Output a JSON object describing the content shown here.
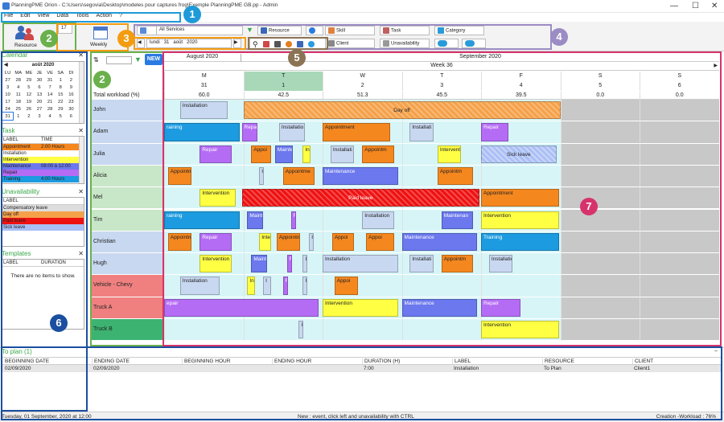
{
  "window": {
    "title": "PlanningPME Orion - C:\\Users\\segovia\\Desktop\\modeles pour captures frog\\Exemple PlanningPME GB.pp - Admin"
  },
  "menu": [
    "File",
    "Edit",
    "View",
    "Data",
    "Tools",
    "Action",
    "?"
  ],
  "ribbon": {
    "resource_label": "Resource",
    "week_num": "17",
    "weekly_label": "Weekly",
    "date": {
      "day": "lundi",
      "num": "31",
      "month": "août",
      "year": "2020"
    },
    "filters": {
      "services": "All Services",
      "resource": "Resource",
      "skill": "Skill",
      "task": "Task",
      "category": "Category",
      "client": "Client",
      "unavailability": "Unavailability"
    }
  },
  "badges": [
    "1",
    "2",
    "2",
    "3",
    "4",
    "5",
    "6",
    "7"
  ],
  "calendar": {
    "title": "Calendar",
    "month": "août 2020",
    "weekdays": [
      "LU",
      "MA",
      "ME",
      "JE",
      "VE",
      "SA",
      "DI"
    ],
    "weeks": [
      [
        "27",
        "28",
        "29",
        "30",
        "31",
        "1",
        "2"
      ],
      [
        "3",
        "4",
        "5",
        "6",
        "7",
        "8",
        "9"
      ],
      [
        "10",
        "11",
        "12",
        "13",
        "14",
        "15",
        "16"
      ],
      [
        "17",
        "18",
        "19",
        "20",
        "21",
        "22",
        "23"
      ],
      [
        "24",
        "25",
        "26",
        "27",
        "28",
        "29",
        "30"
      ],
      [
        "31",
        "1",
        "2",
        "3",
        "4",
        "5",
        "6"
      ]
    ]
  },
  "task_panel": {
    "title": "Task",
    "headers": [
      "LABEL",
      "TIME"
    ],
    "rows": [
      {
        "label": "Appointment",
        "time": "2:00 Hours",
        "color": "#f5871f"
      },
      {
        "label": "Installation",
        "time": "",
        "color": "#ffffff"
      },
      {
        "label": "Intervention",
        "time": "",
        "color": "#ffff44"
      },
      {
        "label": "Maintenance",
        "time": "08:00 à 12:00",
        "color": "#6b78ee"
      },
      {
        "label": "Repair",
        "time": "",
        "color": "#b56cf5"
      },
      {
        "label": "Training",
        "time": "4:00 Hours",
        "color": "#1c9be0"
      }
    ]
  },
  "unavail_panel": {
    "title": "Unavailability",
    "header": "LABEL",
    "rows": [
      {
        "label": "Compensatory leave",
        "color": "#dddddd"
      },
      {
        "label": "Day off",
        "color": "#f5a14a"
      },
      {
        "label": "Paid leave",
        "color": "#ee1111"
      },
      {
        "label": "Sick leave",
        "color": "#aabff5"
      }
    ]
  },
  "templates_panel": {
    "title": "Templates",
    "headers": [
      "LABEL",
      "DURATION"
    ],
    "empty": "There are no items to show."
  },
  "resource_list": {
    "new_label": "NEW",
    "total_label": "Total workload (%)",
    "items": [
      {
        "name": "John",
        "color": "#c8d8f0"
      },
      {
        "name": "Adam",
        "color": "#c8d8f0"
      },
      {
        "name": "Julia",
        "color": "#c8d8f0"
      },
      {
        "name": "Alicia",
        "color": "#c8e6c8"
      },
      {
        "name": "Mel",
        "color": "#c8e6c8"
      },
      {
        "name": "Tim",
        "color": "#c8e6c8"
      },
      {
        "name": "Christian",
        "color": "#c8d8f0"
      },
      {
        "name": "Hugh",
        "color": "#c8d8f0"
      },
      {
        "name": "Vehicle - Chevy",
        "color": "#f08080"
      },
      {
        "name": "Truck A",
        "color": "#f08080"
      },
      {
        "name": "Truck B",
        "color": "#3cb371"
      }
    ]
  },
  "schedule": {
    "months": [
      {
        "label": "August 2020"
      },
      {
        "label": "September 2020"
      }
    ],
    "week_label": "Week 36",
    "days": [
      {
        "letter": "M",
        "num": "31",
        "workload": "60.0"
      },
      {
        "letter": "T",
        "num": "1",
        "workload": "42.5"
      },
      {
        "letter": "W",
        "num": "2",
        "workload": "51.3"
      },
      {
        "letter": "T",
        "num": "3",
        "workload": "45.5"
      },
      {
        "letter": "F",
        "num": "4",
        "workload": "39.5"
      },
      {
        "letter": "S",
        "num": "5",
        "workload": "0.0"
      },
      {
        "letter": "S",
        "num": "6",
        "workload": "0.0"
      }
    ],
    "events": [
      {
        "row": 0,
        "s": 0.2,
        "e": 0.8,
        "label": "Installation",
        "color": "#c8d8f0"
      },
      {
        "row": 0,
        "s": 1.0,
        "e": 5.0,
        "label": "Day off",
        "color": "#f5a14a",
        "center": true
      },
      {
        "row": 1,
        "s": 0.0,
        "e": 0.95,
        "label": "raining",
        "color": "#1c9be0"
      },
      {
        "row": 1,
        "s": 0.98,
        "e": 1.18,
        "label": "Repa",
        "color": "#b56cf5"
      },
      {
        "row": 1,
        "s": 1.45,
        "e": 1.78,
        "label": "Installatio",
        "color": "#c8d8f0"
      },
      {
        "row": 1,
        "s": 2.0,
        "e": 2.85,
        "label": "Appointment",
        "color": "#f5871f"
      },
      {
        "row": 1,
        "s": 3.1,
        "e": 3.4,
        "label": "Installati",
        "color": "#c8d8f0"
      },
      {
        "row": 1,
        "s": 4.0,
        "e": 4.35,
        "label": "Repair",
        "color": "#b56cf5"
      },
      {
        "row": 2,
        "s": 0.45,
        "e": 0.85,
        "label": "Repair",
        "color": "#b56cf5"
      },
      {
        "row": 2,
        "s": 1.1,
        "e": 1.35,
        "label": "Appoi",
        "color": "#f5871f"
      },
      {
        "row": 2,
        "s": 1.4,
        "e": 1.62,
        "label": "Mainte",
        "color": "#6b78ee"
      },
      {
        "row": 2,
        "s": 1.75,
        "e": 1.85,
        "label": "Int",
        "color": "#ffff44"
      },
      {
        "row": 2,
        "s": 2.1,
        "e": 2.4,
        "label": "Installati",
        "color": "#c8d8f0"
      },
      {
        "row": 2,
        "s": 2.5,
        "e": 2.9,
        "label": "Appointm",
        "color": "#f5871f"
      },
      {
        "row": 2,
        "s": 3.45,
        "e": 3.75,
        "label": "Interventi",
        "color": "#ffff44"
      },
      {
        "row": 2,
        "s": 4.0,
        "e": 4.95,
        "label": "Sick leave",
        "color": "#aabff5",
        "center": true
      },
      {
        "row": 3,
        "s": 0.05,
        "e": 0.35,
        "label": "Appointm",
        "color": "#f5871f"
      },
      {
        "row": 3,
        "s": 1.2,
        "e": 1.25,
        "label": "I",
        "color": "#c8d8f0"
      },
      {
        "row": 3,
        "s": 1.5,
        "e": 1.9,
        "label": "Appointme",
        "color": "#f5871f"
      },
      {
        "row": 3,
        "s": 2.0,
        "e": 2.95,
        "label": "Maintenance",
        "color": "#6b78ee"
      },
      {
        "row": 3,
        "s": 3.45,
        "e": 3.9,
        "label": "Appointm",
        "color": "#f5871f"
      },
      {
        "row": 4,
        "s": 0.45,
        "e": 0.9,
        "label": "Intervention",
        "color": "#ffff44"
      },
      {
        "row": 4,
        "s": 0.98,
        "e": 3.98,
        "label": "Paid leave",
        "color": "#ee1111",
        "center": true,
        "light": true
      },
      {
        "row": 4,
        "s": 4.0,
        "e": 4.98,
        "label": "Appointment",
        "color": "#f5871f"
      },
      {
        "row": 5,
        "s": 0.0,
        "e": 0.95,
        "label": "raining",
        "color": "#1c9be0"
      },
      {
        "row": 5,
        "s": 1.05,
        "e": 1.25,
        "label": "Mainte",
        "color": "#6b78ee"
      },
      {
        "row": 5,
        "s": 1.6,
        "e": 1.65,
        "label": "R",
        "color": "#b56cf5"
      },
      {
        "row": 5,
        "s": 2.5,
        "e": 2.9,
        "label": "Installation",
        "color": "#c8d8f0"
      },
      {
        "row": 5,
        "s": 3.5,
        "e": 3.9,
        "label": "Maintenan",
        "color": "#6b78ee"
      },
      {
        "row": 5,
        "s": 4.0,
        "e": 4.98,
        "label": "Intervention",
        "color": "#ffff44"
      },
      {
        "row": 6,
        "s": 0.05,
        "e": 0.35,
        "label": "Appointm Client1",
        "color": "#f5871f"
      },
      {
        "row": 6,
        "s": 0.45,
        "e": 0.85,
        "label": "Repair",
        "color": "#b56cf5"
      },
      {
        "row": 6,
        "s": 1.2,
        "e": 1.35,
        "label": "Interv",
        "color": "#ffff44"
      },
      {
        "row": 6,
        "s": 1.42,
        "e": 1.72,
        "label": "Appointm",
        "color": "#f5871f"
      },
      {
        "row": 6,
        "s": 1.83,
        "e": 1.86,
        "label": "I",
        "color": "#c8d8f0"
      },
      {
        "row": 6,
        "s": 2.12,
        "e": 2.4,
        "label": "Appoi",
        "color": "#f5871f"
      },
      {
        "row": 6,
        "s": 2.55,
        "e": 2.9,
        "label": "Appoi",
        "color": "#f5871f"
      },
      {
        "row": 6,
        "s": 3.0,
        "e": 3.95,
        "label": "Maintenance",
        "color": "#6b78ee"
      },
      {
        "row": 6,
        "s": 4.0,
        "e": 4.98,
        "label": "Training",
        "color": "#1c9be0"
      },
      {
        "row": 7,
        "s": 0.45,
        "e": 0.85,
        "label": "Intervention",
        "color": "#ffff44"
      },
      {
        "row": 7,
        "s": 1.1,
        "e": 1.3,
        "label": "Mainte",
        "color": "#6b78ee"
      },
      {
        "row": 7,
        "s": 1.55,
        "e": 1.6,
        "label": "R",
        "color": "#b56cf5"
      },
      {
        "row": 7,
        "s": 1.75,
        "e": 1.8,
        "label": "I",
        "color": "#c8d8f0"
      },
      {
        "row": 7,
        "s": 2.0,
        "e": 2.95,
        "label": "Installation",
        "color": "#c8d8f0"
      },
      {
        "row": 7,
        "s": 3.1,
        "e": 3.4,
        "label": "Installati",
        "color": "#c8d8f0"
      },
      {
        "row": 7,
        "s": 3.5,
        "e": 3.9,
        "label": "Appointm",
        "color": "#f5871f"
      },
      {
        "row": 7,
        "s": 4.1,
        "e": 4.4,
        "label": "Installatio",
        "color": "#c8d8f0"
      },
      {
        "row": 8,
        "s": 0.2,
        "e": 0.7,
        "label": "Installation",
        "color": "#c8d8f0"
      },
      {
        "row": 8,
        "s": 1.05,
        "e": 1.15,
        "label": "Int",
        "color": "#ffff44"
      },
      {
        "row": 8,
        "s": 1.25,
        "e": 1.35,
        "label": "I",
        "color": "#c8d8f0"
      },
      {
        "row": 8,
        "s": 1.5,
        "e": 1.55,
        "label": "R",
        "color": "#b56cf5"
      },
      {
        "row": 8,
        "s": 1.75,
        "e": 1.8,
        "label": "I",
        "color": "#c8d8f0"
      },
      {
        "row": 8,
        "s": 2.15,
        "e": 2.45,
        "label": "Appoi",
        "color": "#f5871f"
      },
      {
        "row": 9,
        "s": 0.0,
        "e": 1.95,
        "label": "epair",
        "color": "#b56cf5"
      },
      {
        "row": 9,
        "s": 2.0,
        "e": 2.95,
        "label": "Intervention",
        "color": "#ffff44"
      },
      {
        "row": 9,
        "s": 3.0,
        "e": 3.95,
        "label": "Maintenance",
        "color": "#6b78ee"
      },
      {
        "row": 9,
        "s": 4.0,
        "e": 4.5,
        "label": "Repair",
        "color": "#b56cf5"
      },
      {
        "row": 10,
        "s": 1.7,
        "e": 1.75,
        "label": "I",
        "color": "#c8d8f0"
      },
      {
        "row": 10,
        "s": 4.0,
        "e": 4.98,
        "label": "Intervention",
        "color": "#ffff44"
      }
    ]
  },
  "to_plan": {
    "title": "To plan (1)",
    "headers": [
      "BEGINNING DATE",
      "ENDING DATE",
      "BEGINNING HOUR",
      "ENDING HOUR",
      "DURATION (H)",
      "LABEL",
      "RESOURCE",
      "CLIENT"
    ],
    "rows": [
      [
        "02/09/2020",
        "02/09/2020",
        "",
        "",
        "7:00",
        "Installation",
        "To Plan",
        "Client1"
      ]
    ]
  },
  "status": {
    "left": "Tuesday, 01 September, 2020 at 12:00",
    "center": "New : event, click left and unavailability with CTRL",
    "right": "Creation -Workload : 76%"
  }
}
